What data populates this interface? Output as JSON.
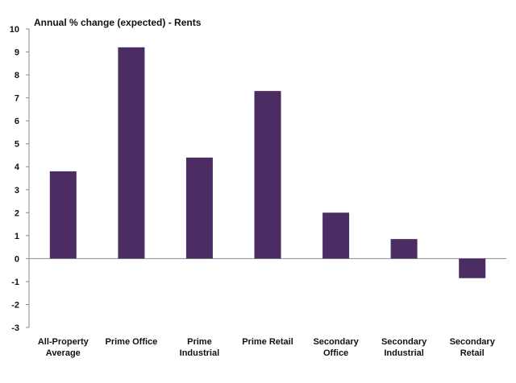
{
  "chart_data": {
    "type": "bar",
    "title": "Annual % change (expected) - Rents",
    "xlabel": "",
    "ylabel": "",
    "ylim": [
      -3,
      10
    ],
    "yticks": [
      10,
      9,
      8,
      7,
      6,
      5,
      4,
      3,
      2,
      1,
      0,
      -1,
      -2,
      -3
    ],
    "grid": false,
    "legend": "none",
    "categories": [
      [
        "All-Property",
        "Average"
      ],
      [
        "Prime Office"
      ],
      [
        "Prime",
        "Industrial"
      ],
      [
        "Prime Retail"
      ],
      [
        "Secondary",
        "Office"
      ],
      [
        "Secondary",
        "Industrial"
      ],
      [
        "Secondary",
        "Retail"
      ]
    ],
    "values": [
      3.8,
      9.2,
      4.4,
      7.3,
      2.0,
      0.85,
      -0.85
    ],
    "bar_color": "#4b2d63",
    "axis_color": "#8a8a8a",
    "text_color": "#111111"
  }
}
